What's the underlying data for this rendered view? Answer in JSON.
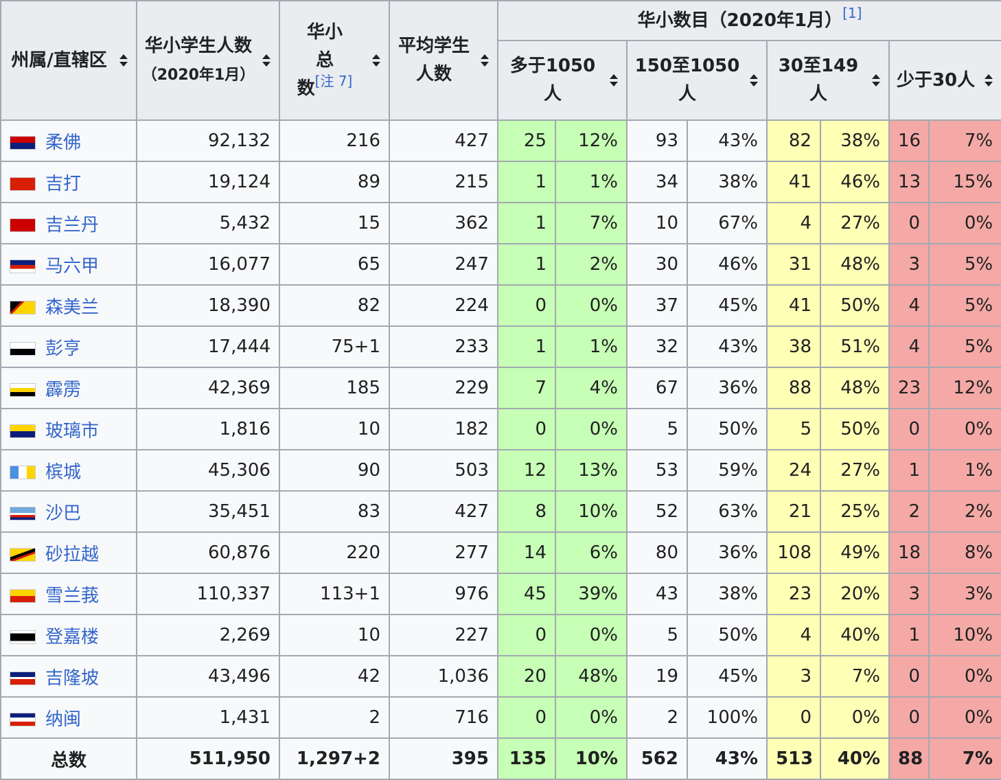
{
  "headers": {
    "state": "州属/直辖区",
    "students": "华小学生人数",
    "students_sub": "（2020年1月）",
    "total_schools_line1": "华小",
    "total_schools_line2": "总",
    "total_schools_line3": "数",
    "total_schools_note": "[注 7]",
    "avg": "平均学生人数",
    "group": "华小数目（2020年1月）",
    "group_note": "[1]",
    "c1": "多于1050人",
    "c2": "150至1050人",
    "c3": "30至149人",
    "c4": "少于30人"
  },
  "rows": [
    {
      "flag": "johor-flag",
      "name": "柔佛",
      "students": "92,132",
      "schools": "216",
      "avg": "427",
      "a": "25",
      "ap": "12%",
      "b": "93",
      "bp": "43%",
      "c": "82",
      "cp": "38%",
      "d": "16",
      "dp": "7%"
    },
    {
      "flag": "kedah-flag",
      "name": "吉打",
      "students": "19,124",
      "schools": "89",
      "avg": "215",
      "a": "1",
      "ap": "1%",
      "b": "34",
      "bp": "38%",
      "c": "41",
      "cp": "46%",
      "d": "13",
      "dp": "15%"
    },
    {
      "flag": "kelantan-flag",
      "name": "吉兰丹",
      "students": "5,432",
      "schools": "15",
      "avg": "362",
      "a": "1",
      "ap": "7%",
      "b": "10",
      "bp": "67%",
      "c": "4",
      "cp": "27%",
      "d": "0",
      "dp": "0%"
    },
    {
      "flag": "malacca-flag",
      "name": "马六甲",
      "students": "16,077",
      "schools": "65",
      "avg": "247",
      "a": "1",
      "ap": "2%",
      "b": "30",
      "bp": "46%",
      "c": "31",
      "cp": "48%",
      "d": "3",
      "dp": "5%"
    },
    {
      "flag": "negeri-sembilan-flag",
      "name": "森美兰",
      "students": "18,390",
      "schools": "82",
      "avg": "224",
      "a": "0",
      "ap": "0%",
      "b": "37",
      "bp": "45%",
      "c": "41",
      "cp": "50%",
      "d": "4",
      "dp": "5%"
    },
    {
      "flag": "pahang-flag",
      "name": "彭亨",
      "students": "17,444",
      "schools": "75+1",
      "avg": "233",
      "a": "1",
      "ap": "1%",
      "b": "32",
      "bp": "43%",
      "c": "38",
      "cp": "51%",
      "d": "4",
      "dp": "5%"
    },
    {
      "flag": "perak-flag",
      "name": "霹雳",
      "students": "42,369",
      "schools": "185",
      "avg": "229",
      "a": "7",
      "ap": "4%",
      "b": "67",
      "bp": "36%",
      "c": "88",
      "cp": "48%",
      "d": "23",
      "dp": "12%"
    },
    {
      "flag": "perlis-flag",
      "name": "玻璃市",
      "students": "1,816",
      "schools": "10",
      "avg": "182",
      "a": "0",
      "ap": "0%",
      "b": "5",
      "bp": "50%",
      "c": "5",
      "cp": "50%",
      "d": "0",
      "dp": "0%"
    },
    {
      "flag": "penang-flag",
      "name": "槟城",
      "students": "45,306",
      "schools": "90",
      "avg": "503",
      "a": "12",
      "ap": "13%",
      "b": "53",
      "bp": "59%",
      "c": "24",
      "cp": "27%",
      "d": "1",
      "dp": "1%"
    },
    {
      "flag": "sabah-flag",
      "name": "沙巴",
      "students": "35,451",
      "schools": "83",
      "avg": "427",
      "a": "8",
      "ap": "10%",
      "b": "52",
      "bp": "63%",
      "c": "21",
      "cp": "25%",
      "d": "2",
      "dp": "2%"
    },
    {
      "flag": "sarawak-flag",
      "name": "砂拉越",
      "students": "60,876",
      "schools": "220",
      "avg": "277",
      "a": "14",
      "ap": "6%",
      "b": "80",
      "bp": "36%",
      "c": "108",
      "cp": "49%",
      "d": "18",
      "dp": "8%"
    },
    {
      "flag": "selangor-flag",
      "name": "雪兰莪",
      "students": "110,337",
      "schools": "113+1",
      "avg": "976",
      "a": "45",
      "ap": "39%",
      "b": "43",
      "bp": "38%",
      "c": "23",
      "cp": "20%",
      "d": "3",
      "dp": "3%"
    },
    {
      "flag": "terengganu-flag",
      "name": "登嘉楼",
      "students": "2,269",
      "schools": "10",
      "avg": "227",
      "a": "0",
      "ap": "0%",
      "b": "5",
      "bp": "50%",
      "c": "4",
      "cp": "40%",
      "d": "1",
      "dp": "10%"
    },
    {
      "flag": "kuala-lumpur-flag",
      "name": "吉隆坡",
      "students": "43,496",
      "schools": "42",
      "avg": "1,036",
      "a": "20",
      "ap": "48%",
      "b": "19",
      "bp": "45%",
      "c": "3",
      "cp": "7%",
      "d": "0",
      "dp": "0%"
    },
    {
      "flag": "labuan-flag",
      "name": "纳闽",
      "students": "1,431",
      "schools": "2",
      "avg": "716",
      "a": "0",
      "ap": "0%",
      "b": "2",
      "bp": "100%",
      "c": "0",
      "cp": "0%",
      "d": "0",
      "dp": "0%"
    }
  ],
  "total": {
    "name": "总数",
    "students": "511,950",
    "schools": "1,297+2",
    "avg": "395",
    "a": "135",
    "ap": "10%",
    "b": "562",
    "bp": "43%",
    "c": "513",
    "cp": "40%",
    "d": "88",
    "dp": "7%"
  },
  "colors": {
    "green": "#c6ffb5",
    "yellow": "#ffffb5",
    "red": "#f4a9a6",
    "header": "#eaecf0",
    "link": "#3366cc"
  }
}
